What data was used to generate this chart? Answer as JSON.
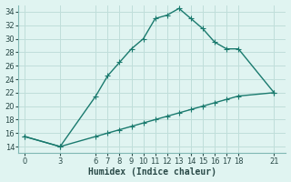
{
  "xlabel": "Humidex (Indice chaleur)",
  "background_color": "#e0f4f1",
  "grid_color": "#c0deda",
  "line_color": "#1a7a6e",
  "x_ticks": [
    0,
    3,
    6,
    7,
    8,
    9,
    10,
    11,
    12,
    13,
    14,
    15,
    16,
    17,
    18,
    21
  ],
  "ylim": [
    13,
    35
  ],
  "xlim": [
    -0.5,
    22
  ],
  "yticks": [
    14,
    16,
    18,
    20,
    22,
    24,
    26,
    28,
    30,
    32,
    34
  ],
  "curve1_x": [
    0,
    3,
    6,
    7,
    8,
    9,
    10,
    11,
    12,
    13,
    14,
    15,
    16,
    17,
    18,
    21
  ],
  "curve1_y": [
    15.5,
    14.0,
    21.5,
    24.5,
    26.5,
    28.5,
    30.0,
    33.0,
    33.5,
    34.5,
    33.0,
    31.5,
    29.5,
    28.5,
    28.5,
    22.0
  ],
  "curve2_x": [
    0,
    3,
    6,
    7,
    8,
    9,
    10,
    11,
    12,
    13,
    14,
    15,
    16,
    17,
    18,
    21
  ],
  "curve2_y": [
    15.5,
    14.0,
    15.5,
    16.0,
    16.5,
    17.0,
    17.5,
    18.0,
    18.5,
    19.0,
    19.5,
    20.0,
    20.5,
    21.0,
    21.5,
    22.0
  ],
  "marker_size": 4,
  "line_width": 1.0,
  "tick_fontsize": 6,
  "label_fontsize": 7,
  "spine_color": "#80b8b4",
  "tick_color": "#2a4a48"
}
